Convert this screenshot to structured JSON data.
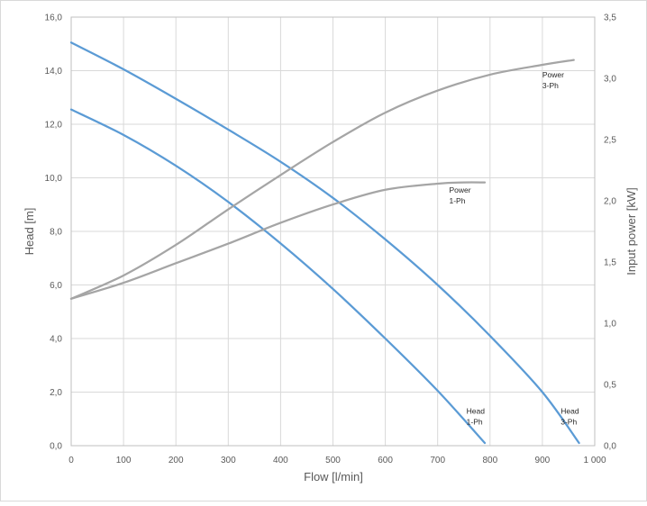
{
  "chart_data": {
    "type": "line",
    "xlabel": "Flow [l/min]",
    "ylabel_left": "Head [m]",
    "ylabel_right": "Input power [kW]",
    "xlim": [
      0,
      1000
    ],
    "ylim_left": [
      0,
      16
    ],
    "ylim_right": [
      0,
      3.5
    ],
    "grid": true,
    "x_ticks": [
      0,
      100,
      200,
      300,
      400,
      500,
      600,
      700,
      800,
      900,
      1000
    ],
    "x_tick_labels": [
      "0",
      "100",
      "200",
      "300",
      "400",
      "500",
      "600",
      "700",
      "800",
      "900",
      "1 000"
    ],
    "y_left_ticks": [
      0,
      2,
      4,
      6,
      8,
      10,
      12,
      14,
      16
    ],
    "y_left_tick_labels": [
      "0,0",
      "2,0",
      "4,0",
      "6,0",
      "8,0",
      "10,0",
      "12,0",
      "14,0",
      "16,0"
    ],
    "y_right_ticks": [
      0,
      0.5,
      1.0,
      1.5,
      2.0,
      2.5,
      3.0,
      3.5
    ],
    "y_right_tick_labels": [
      "0,0",
      "0,5",
      "1,0",
      "1,5",
      "2,0",
      "2,5",
      "3,0",
      "3,5"
    ],
    "colors": {
      "head": "#5b9bd5",
      "power": "#a5a5a5",
      "grid": "#d9d9d9",
      "axis": "#bfbfbf"
    },
    "series": [
      {
        "axis": "left",
        "x": [
          0,
          100,
          200,
          300,
          400,
          500,
          600,
          700,
          790
        ],
        "y": [
          12.55,
          11.6,
          10.45,
          9.1,
          7.55,
          5.85,
          4.0,
          2.05,
          0.1
        ]
      },
      {
        "axis": "left",
        "x": [
          0,
          100,
          200,
          300,
          400,
          500,
          600,
          700,
          800,
          900,
          970
        ],
        "y": [
          15.05,
          14.05,
          12.95,
          11.8,
          10.6,
          9.25,
          7.7,
          6.0,
          4.1,
          2.0,
          0.1
        ]
      },
      {
        "axis": "right",
        "x": [
          0,
          100,
          200,
          300,
          400,
          500,
          600,
          700,
          750,
          790
        ],
        "y": [
          1.2,
          1.33,
          1.49,
          1.65,
          1.82,
          1.97,
          2.09,
          2.14,
          2.15,
          2.15
        ]
      },
      {
        "axis": "right",
        "x": [
          0,
          100,
          200,
          300,
          400,
          500,
          600,
          700,
          800,
          900,
          960
        ],
        "y": [
          1.2,
          1.39,
          1.64,
          1.93,
          2.21,
          2.48,
          2.72,
          2.9,
          3.03,
          3.11,
          3.15
        ]
      }
    ],
    "annotations": [
      {
        "lines": [
          "Head",
          "1-Ph"
        ],
        "x": 755,
        "y_left": 1.2
      },
      {
        "lines": [
          "Head",
          "3-Ph"
        ],
        "x": 935,
        "y_left": 1.2
      },
      {
        "lines": [
          "Power",
          "1-Ph"
        ],
        "x": 722,
        "y_left": 9.45
      },
      {
        "lines": [
          "Power",
          "3-Ph"
        ],
        "x": 900,
        "y_left": 13.75
      }
    ]
  }
}
